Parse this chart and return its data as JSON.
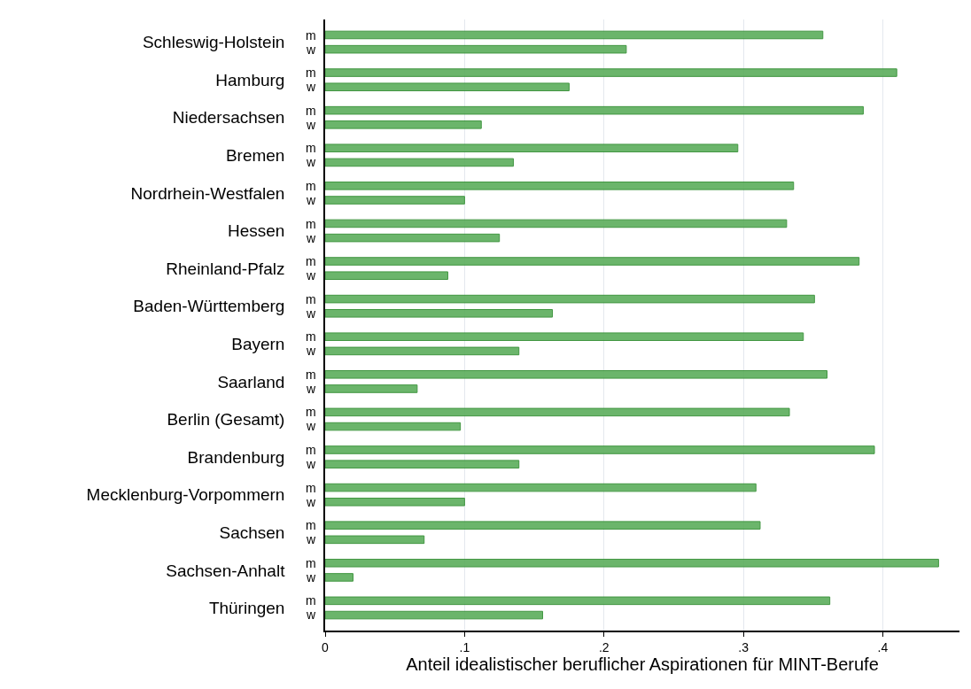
{
  "chart_data": {
    "type": "bar",
    "orientation": "horizontal",
    "xlabel": "Anteil idealistischer beruflicher Aspirationen für MINT-Berufe",
    "categories": [
      "Schleswig-Holstein",
      "Hamburg",
      "Niedersachsen",
      "Bremen",
      "Nordrhein-Westfalen",
      "Hessen",
      "Rheinland-Pfalz",
      "Baden-Württemberg",
      "Bayern",
      "Saarland",
      "Berlin (Gesamt)",
      "Brandenburg",
      "Mecklenburg-Vorpommern",
      "Sachsen",
      "Sachsen-Anhalt",
      "Thüringen"
    ],
    "series": [
      {
        "name": "m",
        "color": "#5cae5c",
        "values": [
          0.357,
          0.41,
          0.386,
          0.296,
          0.336,
          0.331,
          0.383,
          0.351,
          0.343,
          0.36,
          0.333,
          0.394,
          0.309,
          0.312,
          0.44,
          0.362
        ]
      },
      {
        "name": "w",
        "color": "#5cae5c",
        "values": [
          0.216,
          0.175,
          0.112,
          0.135,
          0.1,
          0.125,
          0.088,
          0.163,
          0.139,
          0.066,
          0.097,
          0.139,
          0.1,
          0.071,
          0.02,
          0.156
        ]
      }
    ],
    "xlim": [
      0,
      0.455
    ],
    "xticks": [
      {
        "value": 0,
        "label": "0"
      },
      {
        "value": 0.1,
        "label": ".1"
      },
      {
        "value": 0.2,
        "label": ".2"
      },
      {
        "value": 0.3,
        "label": ".3"
      },
      {
        "value": 0.4,
        "label": ".4"
      }
    ],
    "grid": "x",
    "legend": false
  }
}
